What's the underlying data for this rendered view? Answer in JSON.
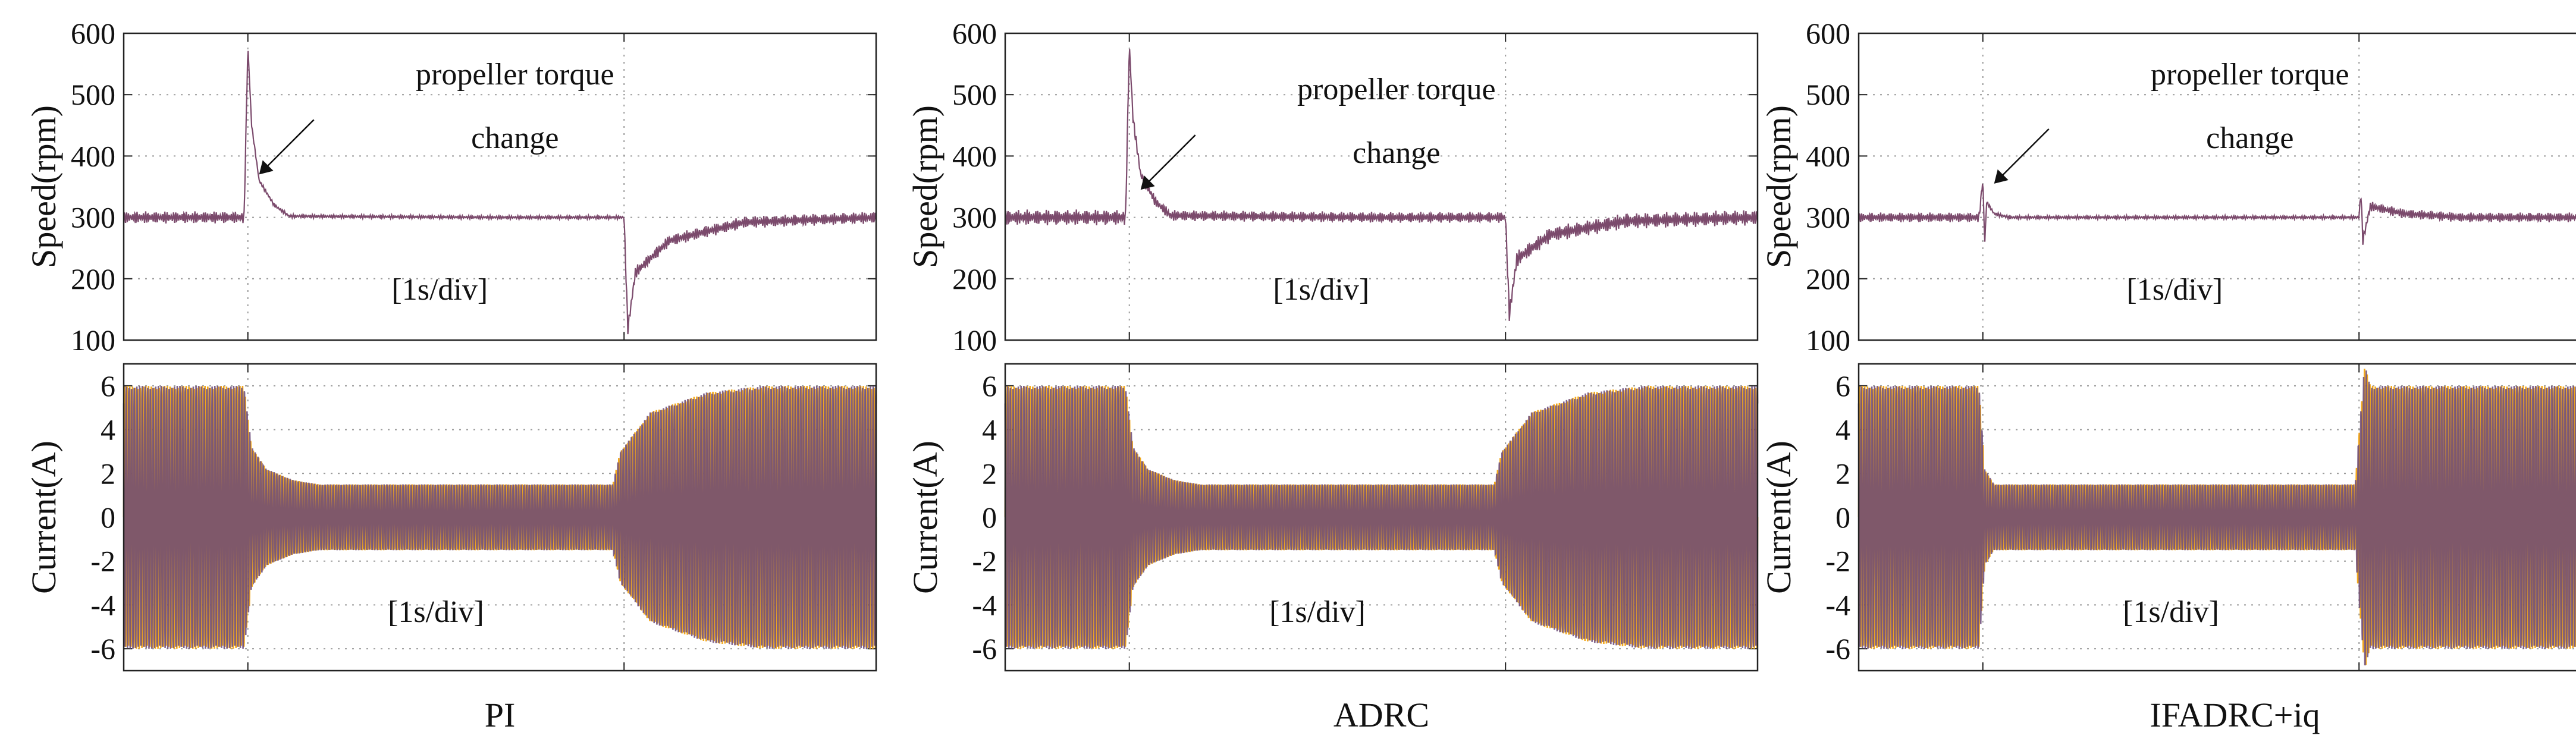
{
  "colors": {
    "speed": "#7b4a6c",
    "phase_a": "#f2a81d",
    "phase_b": "#6b4a78",
    "grid": "#9a9a9a",
    "frame": "#222222"
  },
  "chart_data": [
    {
      "type": "line",
      "caption": "PI",
      "speed": {
        "ylabel": "Speed(rpm)",
        "ylim": [
          100,
          600
        ],
        "yticks": [
          "100",
          "200",
          "300",
          "400",
          "500",
          "600"
        ],
        "series": [
          {
            "name": "speed",
            "x": [
              0,
              0.32,
              0.33,
              0.34,
              0.36,
              0.4,
              0.44,
              1.0,
              1.33,
              1.34,
              1.36,
              1.45,
              1.65,
              2.0
            ],
            "values": [
              300,
              300,
              580,
              450,
              360,
              320,
              302,
              300,
              300,
              118,
              210,
              262,
              292,
              300
            ]
          }
        ],
        "annotation": {
          "line1": "propeller torque",
          "line2": "change",
          "arrow_to": [
            0.36,
            370
          ]
        },
        "time_scale": "[1s/div]",
        "ripple": 10,
        "ripple_after": 3
      },
      "current": {
        "ylabel": "Current(A)",
        "ylim": [
          -7,
          7
        ],
        "yticks": [
          "-6",
          "-4",
          "-2",
          "0",
          "2",
          "4",
          "6"
        ],
        "series": [
          {
            "name": "phase current a",
            "x": [
              0,
              0.32,
              0.34,
              0.38,
              0.45,
              0.52,
              1.3,
              1.32,
              1.4,
              1.55,
              1.7,
              2.0
            ],
            "values": [
              6,
              6,
              3.2,
              2.2,
              1.7,
              1.5,
              1.5,
              3.0,
              4.8,
              5.7,
              6,
              6
            ]
          }
        ],
        "time_scale": "[1s/div]"
      },
      "xlim": [
        0,
        2
      ],
      "xtick_positions": [
        0.33,
        1.33
      ]
    },
    {
      "type": "line",
      "caption": "ADRC",
      "speed": {
        "ylabel": "Speed(rpm)",
        "ylim": [
          100,
          600
        ],
        "yticks": [
          "100",
          "200",
          "300",
          "400",
          "500",
          "600"
        ],
        "series": [
          {
            "name": "speed",
            "x": [
              0,
              0.32,
              0.33,
              0.34,
              0.36,
              0.4,
              0.44,
              1.0,
              1.33,
              1.34,
              1.36,
              1.45,
              1.65,
              2.0
            ],
            "values": [
              300,
              300,
              580,
              460,
              370,
              325,
              303,
              300,
              300,
              142,
              232,
              272,
              294,
              300
            ]
          }
        ],
        "annotation": {
          "line1": "propeller torque",
          "line2": "change",
          "arrow_to": [
            0.36,
            345
          ]
        },
        "time_scale": "[1s/div]",
        "ripple": 13,
        "ripple_after": 9
      },
      "current": {
        "ylabel": "Current(A)",
        "ylim": [
          -7,
          7
        ],
        "yticks": [
          "-6",
          "-4",
          "-2",
          "0",
          "2",
          "4",
          "6"
        ],
        "series": [
          {
            "name": "phase current a",
            "x": [
              0,
              0.32,
              0.34,
              0.38,
              0.45,
              0.52,
              1.3,
              1.32,
              1.4,
              1.55,
              1.7,
              2.0
            ],
            "values": [
              6,
              6,
              3.2,
              2.2,
              1.7,
              1.5,
              1.5,
              3.0,
              4.8,
              5.7,
              6,
              6
            ]
          }
        ],
        "time_scale": "[1s/div]"
      },
      "xlim": [
        0,
        2
      ],
      "xtick_positions": [
        0.33,
        1.33
      ]
    },
    {
      "type": "line",
      "caption": "IFADRC+iq",
      "speed": {
        "ylabel": "Speed(rpm)",
        "ylim": [
          100,
          600
        ],
        "yticks": [
          "100",
          "200",
          "300",
          "400",
          "500",
          "600"
        ],
        "series": [
          {
            "name": "speed",
            "x": [
              0,
              0.32,
              0.33,
              0.335,
              0.34,
              0.36,
              0.4,
              1.0,
              1.33,
              1.335,
              1.34,
              1.36,
              1.45,
              1.6,
              2.0
            ],
            "values": [
              300,
              300,
              362,
              255,
              325,
              306,
              300,
              300,
              300,
              342,
              262,
              318,
              306,
              300,
              300
            ]
          }
        ],
        "annotation": {
          "line1": "propeller torque",
          "line2": "change",
          "arrow_to": [
            0.36,
            355
          ]
        },
        "time_scale": "[1s/div]",
        "ripple": 8,
        "ripple_after": 3
      },
      "current": {
        "ylabel": "Current(A)",
        "ylim": [
          -7,
          7
        ],
        "yticks": [
          "-6",
          "-4",
          "-2",
          "0",
          "2",
          "4",
          "6"
        ],
        "series": [
          {
            "name": "phase current a",
            "x": [
              0,
              0.32,
              0.335,
              0.36,
              1.32,
              1.33,
              1.345,
              1.36,
              2.0
            ],
            "values": [
              6,
              6,
              2.2,
              1.5,
              1.5,
              3.8,
              7,
              6,
              6
            ]
          }
        ],
        "time_scale": "[1s/div]"
      },
      "xlim": [
        0,
        2
      ],
      "xtick_positions": [
        0.33,
        1.33
      ]
    }
  ]
}
